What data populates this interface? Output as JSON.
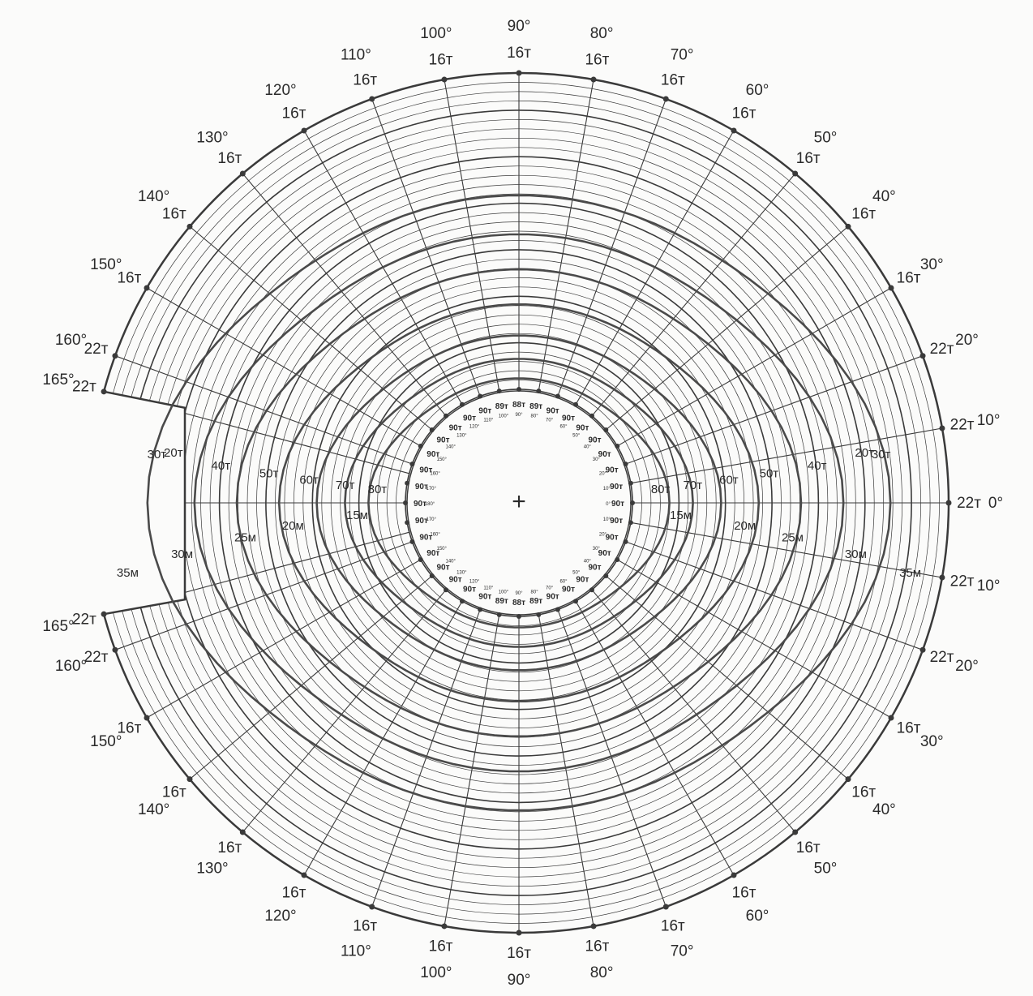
{
  "center_mark": "+",
  "outer_upper": [
    {
      "deg": "90°",
      "val": "16т"
    },
    {
      "deg": "80°",
      "val": "16т"
    },
    {
      "deg": "70°",
      "val": "16т"
    },
    {
      "deg": "60°",
      "val": "16т"
    },
    {
      "deg": "50°",
      "val": "16т"
    },
    {
      "deg": "40°",
      "val": "16т"
    },
    {
      "deg": "30°",
      "val": "16т"
    },
    {
      "deg": "20°",
      "val": "22т"
    },
    {
      "deg": "10°",
      "val": "22т"
    },
    {
      "deg": "0°",
      "val": "22т"
    },
    {
      "deg": "100°",
      "val": "16т"
    },
    {
      "deg": "110°",
      "val": "16т"
    },
    {
      "deg": "120°",
      "val": "16т"
    },
    {
      "deg": "130°",
      "val": "16т"
    },
    {
      "deg": "140°",
      "val": "16т"
    },
    {
      "deg": "150°",
      "val": "16т"
    },
    {
      "deg": "160°",
      "val": "22т"
    },
    {
      "deg": "165°",
      "val": "22т"
    }
  ],
  "outer_lower": [
    {
      "deg": "10°",
      "val": "22т"
    },
    {
      "deg": "20°",
      "val": "22т"
    },
    {
      "deg": "30°",
      "val": "16т"
    },
    {
      "deg": "40°",
      "val": "16т"
    },
    {
      "deg": "50°",
      "val": "16т"
    },
    {
      "deg": "60°",
      "val": "16т"
    },
    {
      "deg": "70°",
      "val": "16т"
    },
    {
      "deg": "80°",
      "val": "16т"
    },
    {
      "deg": "90°",
      "val": "16т"
    },
    {
      "deg": "100°",
      "val": "16т"
    },
    {
      "deg": "110°",
      "val": "16т"
    },
    {
      "deg": "120°",
      "val": "16т"
    },
    {
      "deg": "130°",
      "val": "16т"
    },
    {
      "deg": "140°",
      "val": "16т"
    },
    {
      "deg": "150°",
      "val": "16т"
    },
    {
      "deg": "160°",
      "val": "22т"
    },
    {
      "deg": "165°",
      "val": "22т"
    }
  ],
  "zones_right_upper": [
    "80т",
    "70т",
    "60т",
    "50т",
    "40т",
    "30т",
    "20т"
  ],
  "zones_right_lower": [
    "15м",
    "20м",
    "25м",
    "30м",
    "35м"
  ],
  "zones_left_upper": [
    "80т",
    "70т",
    "60т",
    "50т",
    "40т",
    "30т",
    "20т"
  ],
  "zones_left_lower": [
    "15м",
    "20м",
    "25м",
    "30м",
    "35м"
  ],
  "inner_upper": [
    {
      "deg": "0°",
      "val": "90т"
    },
    {
      "deg": "10°",
      "val": "90т"
    },
    {
      "deg": "20°",
      "val": "90т"
    },
    {
      "deg": "30°",
      "val": "90т"
    },
    {
      "deg": "40°",
      "val": "90т"
    },
    {
      "deg": "50°",
      "val": "90т"
    },
    {
      "deg": "60°",
      "val": "90т"
    },
    {
      "deg": "70°",
      "val": "90т"
    },
    {
      "deg": "80°",
      "val": "89т"
    },
    {
      "deg": "90°",
      "val": "88т"
    },
    {
      "deg": "100°",
      "val": "89т"
    },
    {
      "deg": "110°",
      "val": "90т"
    },
    {
      "deg": "120°",
      "val": "90т"
    },
    {
      "deg": "130°",
      "val": "90т"
    },
    {
      "deg": "140°",
      "val": "90т"
    },
    {
      "deg": "150°",
      "val": "90т"
    },
    {
      "deg": "160°",
      "val": "90т"
    },
    {
      "deg": "170°",
      "val": "90т"
    },
    {
      "deg": "180°",
      "val": "90т"
    }
  ],
  "inner_lower": [
    {
      "deg": "10°",
      "val": "90т"
    },
    {
      "deg": "20°",
      "val": "90т"
    },
    {
      "deg": "30°",
      "val": "90т"
    },
    {
      "deg": "40°",
      "val": "90т"
    },
    {
      "deg": "50°",
      "val": "90т"
    },
    {
      "deg": "60°",
      "val": "90т"
    },
    {
      "deg": "70°",
      "val": "90т"
    },
    {
      "deg": "80°",
      "val": "89т"
    },
    {
      "deg": "90°",
      "val": "88т"
    },
    {
      "deg": "100°",
      "val": "89т"
    },
    {
      "deg": "110°",
      "val": "90т"
    },
    {
      "deg": "120°",
      "val": "90т"
    },
    {
      "deg": "130°",
      "val": "90т"
    },
    {
      "deg": "140°",
      "val": "90т"
    },
    {
      "deg": "150°",
      "val": "90т"
    },
    {
      "deg": "160°",
      "val": "90т"
    },
    {
      "deg": "170°",
      "val": "90т"
    }
  ],
  "colors": {
    "ink": "#3a3a3a",
    "paper": "#fbfbfa",
    "curve": "#4a4a4a"
  }
}
